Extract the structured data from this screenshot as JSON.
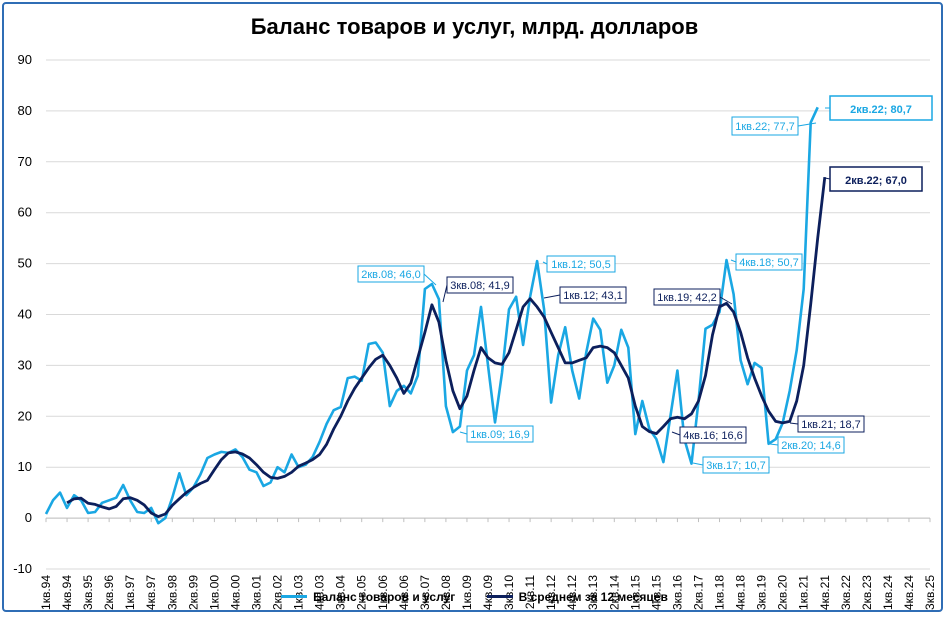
{
  "chart_data": {
    "type": "line",
    "title": "Баланс товаров и услуг, млрд. долларов",
    "xlabel": "",
    "ylabel": "",
    "ylim": [
      -10,
      90
    ],
    "yticks": [
      -10,
      0,
      10,
      20,
      30,
      40,
      50,
      60,
      70,
      80,
      90
    ],
    "xticks": [
      "1кв.94",
      "4кв.94",
      "3кв.95",
      "2кв.96",
      "1кв.97",
      "4кв.97",
      "3кв.98",
      "2кв.99",
      "1кв.00",
      "4кв.00",
      "3кв.01",
      "2кв.02",
      "1кв.03",
      "4кв.03",
      "3кв.04",
      "2кв.05",
      "1кв.06",
      "4кв.06",
      "3кв.07",
      "2кв.08",
      "1кв.09",
      "4кв.09",
      "3кв.10",
      "2кв.11",
      "1кв.12",
      "4кв.12",
      "3кв.13",
      "2кв.14",
      "1кв.15",
      "4кв.15",
      "3кв.16",
      "2кв.17",
      "1кв.18",
      "4кв.18",
      "3кв.19",
      "2кв.20",
      "1кв.21",
      "4кв.21",
      "3кв.22",
      "2кв.23",
      "1кв.24",
      "4кв.24",
      "3кв.25"
    ],
    "grid": true,
    "legend_position": "bottom",
    "series": [
      {
        "name": "Баланс товаров и услуг",
        "color": "#1aa7e3",
        "values": [
          0.8,
          3.5,
          5.0,
          2.0,
          4.5,
          3.5,
          1.0,
          1.2,
          3.0,
          3.5,
          4.0,
          6.5,
          3.5,
          1.2,
          1.0,
          2.0,
          -1.0,
          0,
          4.0,
          8.8,
          4.5,
          6.0,
          8.5,
          11.8,
          12.5,
          13.0,
          12.8,
          13.5,
          12.0,
          9.5,
          9.0,
          6.3,
          7.0,
          10.0,
          9.0,
          12.5,
          10.0,
          10.5,
          12.0,
          15.0,
          18.5,
          21.2,
          21.8,
          27.5,
          27.8,
          27.0,
          34.2,
          34.5,
          32.5,
          22.0,
          25.0,
          26.0,
          24.5,
          28.0,
          45.0,
          46.0,
          43.0,
          22.0,
          16.9,
          18.0,
          29.0,
          32.0,
          41.5,
          30.0,
          18.8,
          28.5,
          41.0,
          43.5,
          34.0,
          43.5,
          50.5,
          41.0,
          22.7,
          32.0,
          37.5,
          29.0,
          23.5,
          32.5,
          39.2,
          37.0,
          26.6,
          30.0,
          37.0,
          33.5,
          16.5,
          23.0,
          17.5,
          15.5,
          11.0,
          20.0,
          29.0,
          15.5,
          10.7,
          23.0,
          37.2,
          38.0,
          40.5,
          50.7,
          44.0,
          31.0,
          26.3,
          30.5,
          29.5,
          14.6,
          15.5,
          18.7,
          25.0,
          33.0,
          45.0,
          77.7,
          80.7
        ]
      },
      {
        "name": "В среднем за 12 месяцев",
        "color": "#0c1f5c",
        "values": [
          null,
          null,
          null,
          3.0,
          3.8,
          3.9,
          2.9,
          2.7,
          2.2,
          1.8,
          2.3,
          3.8,
          4.0,
          3.5,
          2.6,
          1.0,
          0.3,
          0.8,
          2.5,
          3.8,
          5.0,
          6.0,
          6.8,
          7.4,
          9.5,
          11.5,
          12.8,
          13.0,
          12.6,
          11.8,
          10.5,
          9.0,
          8.0,
          7.8,
          8.2,
          9.0,
          10.2,
          10.8,
          11.5,
          12.5,
          14.5,
          17.5,
          20.0,
          23.0,
          25.5,
          27.5,
          29.5,
          31.2,
          32.0,
          30.0,
          27.5,
          24.5,
          26.5,
          31.5,
          36.5,
          41.9,
          38.5,
          31.0,
          25.0,
          21.5,
          24.0,
          29.0,
          33.5,
          31.5,
          30.5,
          30.2,
          32.5,
          37.0,
          41.5,
          43.1,
          41.5,
          39.5,
          36.5,
          33.5,
          30.5,
          30.5,
          31.0,
          31.5,
          33.5,
          33.8,
          33.5,
          32.5,
          30.0,
          27.5,
          22.0,
          18.0,
          17.0,
          16.6,
          18.0,
          19.5,
          19.8,
          19.5,
          20.5,
          23.0,
          28.0,
          36.0,
          41.5,
          42.2,
          40.5,
          36.5,
          31.5,
          27.5,
          24.0,
          21.0,
          19.0,
          18.7,
          19.0,
          23.0,
          30.0,
          42.0,
          55.0,
          67.0
        ]
      }
    ],
    "annotations": [
      {
        "text": "2кв.08; 46,0",
        "series": 0
      },
      {
        "text": "3кв.08; 41,9",
        "series": 1
      },
      {
        "text": "1кв.09; 16,9",
        "series": 0
      },
      {
        "text": "1кв.12; 50,5",
        "series": 0
      },
      {
        "text": "1кв.12; 43,1",
        "series": 1
      },
      {
        "text": "4кв.16; 16,6",
        "series": 1
      },
      {
        "text": "3кв.17; 10,7",
        "series": 0
      },
      {
        "text": "1кв.19; 42,2",
        "series": 1
      },
      {
        "text": "4кв.18; 50,7",
        "series": 0
      },
      {
        "text": "2кв.20; 14,6",
        "series": 0
      },
      {
        "text": "1кв.21; 18,7",
        "series": 1
      },
      {
        "text": "1кв.22; 77,7",
        "series": 0
      },
      {
        "text": "2кв.22; 80,7",
        "series": 0
      },
      {
        "text": "2кв.22; 67,0",
        "series": 1
      }
    ]
  }
}
